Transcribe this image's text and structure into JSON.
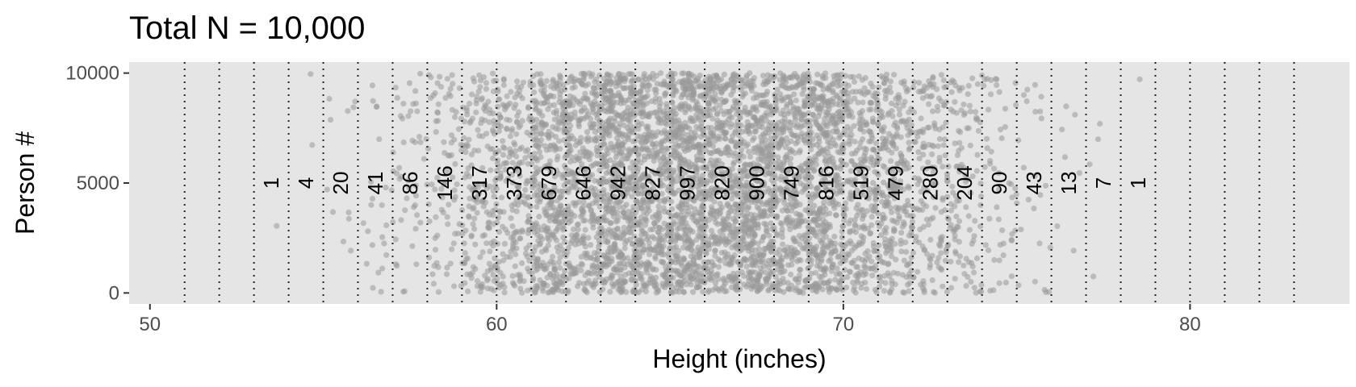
{
  "chart_data": {
    "type": "scatter",
    "title": "Total N = 10,000",
    "xlabel": "Height (inches)",
    "ylabel": "Person #",
    "xlim": [
      49.4,
      84.6
    ],
    "ylim": [
      -500,
      10500
    ],
    "x_ticks": [
      50,
      60,
      70,
      80
    ],
    "y_ticks": [
      0,
      5000,
      10000
    ],
    "x_tick_labels": [
      "50",
      "60",
      "70",
      "80"
    ],
    "y_tick_labels": [
      "0",
      "5000",
      "10000"
    ],
    "grid": false,
    "panel_background": "#e5e5e5",
    "point_color": "#999999",
    "divider_lines_x": [
      51,
      52,
      53,
      54,
      55,
      56,
      57,
      58,
      59,
      60,
      61,
      62,
      63,
      64,
      65,
      66,
      67,
      68,
      69,
      70,
      71,
      72,
      73,
      74,
      75,
      76,
      77,
      78,
      79,
      80,
      81,
      82,
      83
    ],
    "bin_label_y": 5000,
    "bins": [
      {
        "x": 53.5,
        "count": "1"
      },
      {
        "x": 54.5,
        "count": "4"
      },
      {
        "x": 55.5,
        "count": "20"
      },
      {
        "x": 56.5,
        "count": "41"
      },
      {
        "x": 57.5,
        "count": "86"
      },
      {
        "x": 58.5,
        "count": "146"
      },
      {
        "x": 59.5,
        "count": "317"
      },
      {
        "x": 60.5,
        "count": "373"
      },
      {
        "x": 61.5,
        "count": "679"
      },
      {
        "x": 62.5,
        "count": "646"
      },
      {
        "x": 63.5,
        "count": "942"
      },
      {
        "x": 64.5,
        "count": "827"
      },
      {
        "x": 65.5,
        "count": "997"
      },
      {
        "x": 66.5,
        "count": "820"
      },
      {
        "x": 67.5,
        "count": "900"
      },
      {
        "x": 68.5,
        "count": "749"
      },
      {
        "x": 69.5,
        "count": "816"
      },
      {
        "x": 70.5,
        "count": "519"
      },
      {
        "x": 71.5,
        "count": "479"
      },
      {
        "x": 72.5,
        "count": "280"
      },
      {
        "x": 73.5,
        "count": "204"
      },
      {
        "x": 74.5,
        "count": "90"
      },
      {
        "x": 75.5,
        "count": "43"
      },
      {
        "x": 76.5,
        "count": "13"
      },
      {
        "x": 77.5,
        "count": "7"
      },
      {
        "x": 78.5,
        "count": "1"
      }
    ]
  }
}
